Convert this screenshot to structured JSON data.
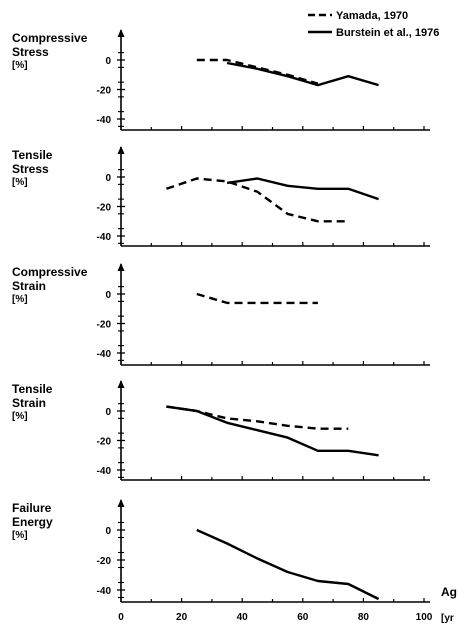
{
  "chart_data": {
    "type": "line",
    "legend": {
      "placement": "top-right",
      "entries": [
        {
          "name": "Yamada, 1970",
          "style": "dashed"
        },
        {
          "name": "Burstein et al., 1976",
          "style": "solid"
        }
      ]
    },
    "xaxis": {
      "ticks": [
        "0",
        "20",
        "40",
        "60",
        "80",
        "100"
      ],
      "range": [
        0,
        100
      ],
      "label_fragment": "Ag",
      "unit_fragment": "[yr"
    },
    "panels": [
      {
        "title_lines": [
          "Compressive",
          "Stress"
        ],
        "unit": "[%]",
        "yticks": [
          "0",
          "-20",
          "-40"
        ],
        "ylim": [
          -45,
          10
        ],
        "series": [
          {
            "name": "Yamada, 1970",
            "style": "dashed",
            "points": [
              [
                25,
                0
              ],
              [
                35,
                0
              ],
              [
                45,
                -5
              ],
              [
                55,
                -10
              ],
              [
                65,
                -16
              ]
            ]
          },
          {
            "name": "Burstein et al., 1976",
            "style": "solid",
            "points": [
              [
                35,
                -2
              ],
              [
                45,
                -6
              ],
              [
                55,
                -11
              ],
              [
                65,
                -17
              ],
              [
                75,
                -11
              ],
              [
                85,
                -17
              ]
            ]
          }
        ]
      },
      {
        "title_lines": [
          "Tensile",
          "Stress"
        ],
        "unit": "[%]",
        "yticks": [
          "0",
          "-20",
          "-40"
        ],
        "ylim": [
          -45,
          20
        ],
        "series": [
          {
            "name": "Yamada, 1970",
            "style": "dashed",
            "points": [
              [
                15,
                -8
              ],
              [
                25,
                -1
              ],
              [
                35,
                -3
              ],
              [
                45,
                -10
              ],
              [
                55,
                -25
              ],
              [
                65,
                -30
              ],
              [
                75,
                -30
              ]
            ]
          },
          {
            "name": "Burstein et al., 1976",
            "style": "solid",
            "points": [
              [
                35,
                -4
              ],
              [
                45,
                -1
              ],
              [
                55,
                -6
              ],
              [
                65,
                -8
              ],
              [
                75,
                -8
              ],
              [
                85,
                -15
              ]
            ]
          }
        ]
      },
      {
        "title_lines": [
          "Compressive",
          "Strain"
        ],
        "unit": "[%]",
        "yticks": [
          "0",
          "-20",
          "-40"
        ],
        "ylim": [
          -45,
          10
        ],
        "series": [
          {
            "name": "Yamada, 1970",
            "style": "dashed",
            "points": [
              [
                25,
                0
              ],
              [
                35,
                -6
              ],
              [
                45,
                -6
              ],
              [
                55,
                -6
              ],
              [
                65,
                -6
              ]
            ]
          }
        ]
      },
      {
        "title_lines": [
          "Tensile",
          "Strain"
        ],
        "unit": "[%]",
        "yticks": [
          "0",
          "-20",
          "-40"
        ],
        "ylim": [
          -45,
          20
        ],
        "series": [
          {
            "name": "Yamada, 1970",
            "style": "dashed",
            "points": [
              [
                15,
                3
              ],
              [
                25,
                0
              ],
              [
                35,
                -5
              ],
              [
                45,
                -7
              ],
              [
                55,
                -10
              ],
              [
                65,
                -12
              ],
              [
                75,
                -12
              ]
            ]
          },
          {
            "name": "Burstein et al., 1976",
            "style": "solid",
            "points": [
              [
                15,
                3
              ],
              [
                25,
                0
              ],
              [
                35,
                -8
              ],
              [
                45,
                -13
              ],
              [
                55,
                -18
              ],
              [
                65,
                -27
              ],
              [
                75,
                -27
              ],
              [
                85,
                -30
              ]
            ]
          }
        ]
      },
      {
        "title_lines": [
          "Failure",
          "Energy"
        ],
        "unit": "[%]",
        "yticks": [
          "0",
          "-20",
          "-40"
        ],
        "ylim": [
          -45,
          20
        ],
        "series": [
          {
            "name": "Burstein et al., 1976",
            "style": "solid",
            "points": [
              [
                25,
                0
              ],
              [
                35,
                -9
              ],
              [
                45,
                -19
              ],
              [
                55,
                -28
              ],
              [
                65,
                -34
              ],
              [
                75,
                -36
              ],
              [
                85,
                -46
              ]
            ]
          }
        ]
      }
    ]
  }
}
